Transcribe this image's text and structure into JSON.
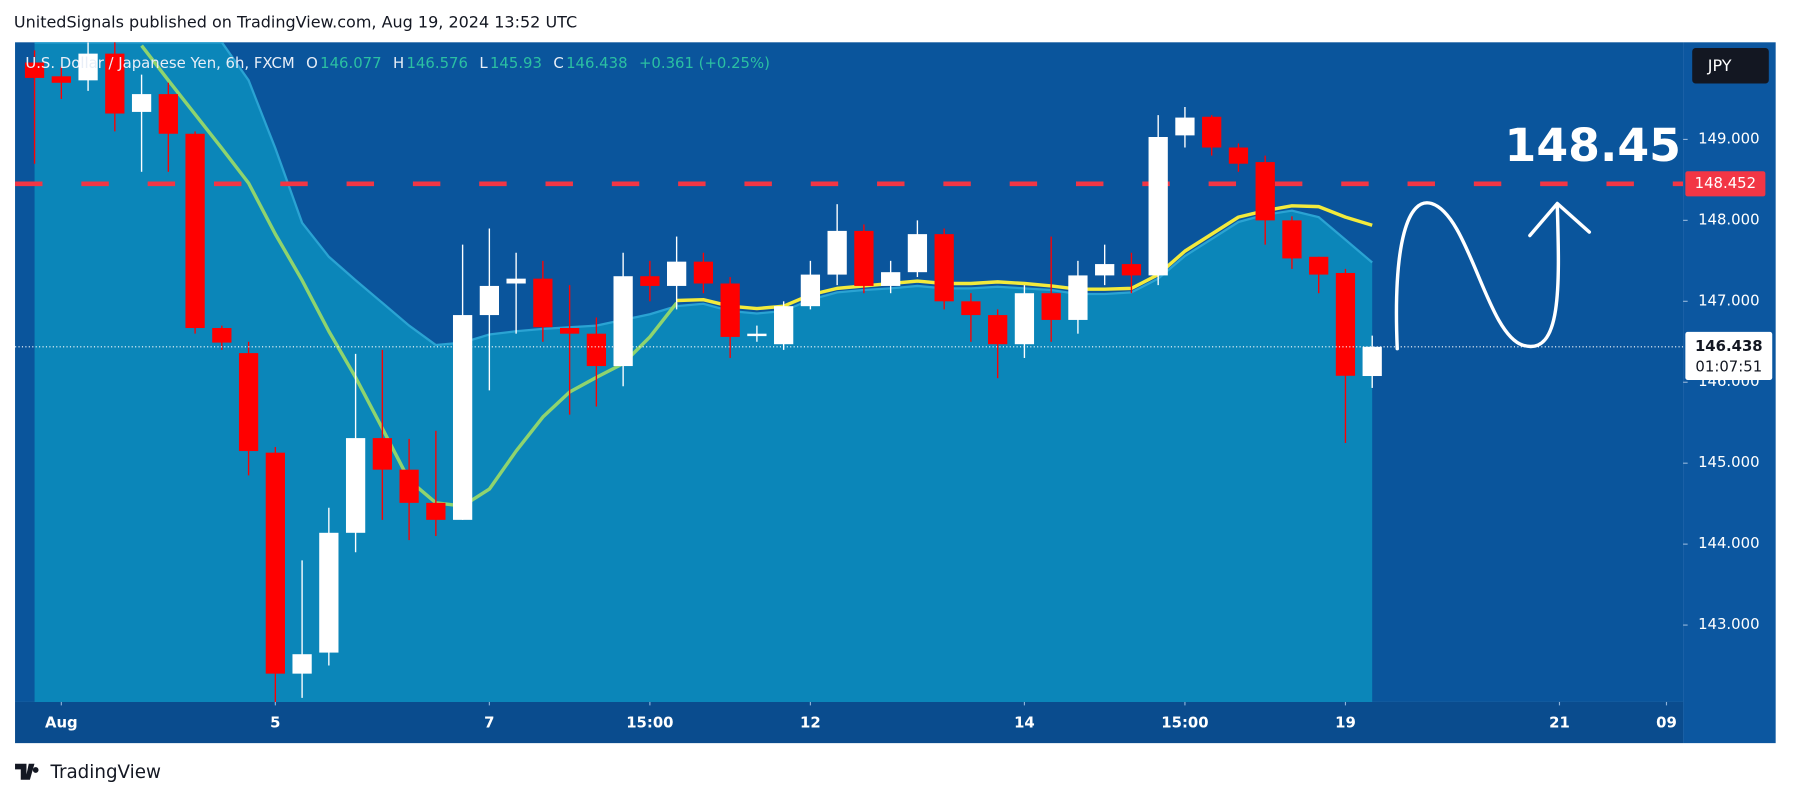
{
  "header": "UnitedSignals published on TradingView.com, Aug 19, 2024 13:52 UTC",
  "footer": "TradingView",
  "currency": "JPY",
  "chart_data": {
    "type": "candlestick",
    "title": "U.S. Dollar / Japanese Yen, 6h, FXCM",
    "ohlc_labels": [
      "O",
      "H",
      "L",
      "C"
    ],
    "change": "+0.361 (+0.25%)",
    "countdown": "01:07:51",
    "up_color": "#ffffff",
    "down_color": "#ff0000",
    "open": [
      149.95,
      149.78,
      149.73,
      150.06,
      149.34,
      149.56,
      149.07,
      146.67,
      146.36,
      145.13,
      142.4,
      142.66,
      144.14,
      145.31,
      144.92,
      144.51,
      144.3,
      146.83,
      147.22,
      147.28,
      146.67,
      146.6,
      146.2,
      147.31,
      147.19,
      147.49,
      147.22,
      146.57,
      146.47,
      146.94,
      147.33,
      147.87,
      147.19,
      147.36,
      147.83,
      147.0,
      146.83,
      146.47,
      147.1,
      146.77,
      147.32,
      147.46,
      147.32,
      149.05,
      149.28,
      148.9,
      148.72,
      148.0,
      147.55,
      147.35,
      146.077
    ],
    "high": [
      150.1,
      149.9,
      150.2,
      150.2,
      149.8,
      149.7,
      149.1,
      146.7,
      146.5,
      145.2,
      143.8,
      144.45,
      146.35,
      146.4,
      145.3,
      145.4,
      147.7,
      147.9,
      147.6,
      147.5,
      147.2,
      146.8,
      147.6,
      147.5,
      147.8,
      147.6,
      147.3,
      146.7,
      147.0,
      147.5,
      148.2,
      147.95,
      147.5,
      148.0,
      147.9,
      147.1,
      146.9,
      147.2,
      147.8,
      147.5,
      147.7,
      147.6,
      149.3,
      149.4,
      149.3,
      148.95,
      148.8,
      148.05,
      147.55,
      147.4,
      146.576
    ],
    "low": [
      148.7,
      149.5,
      149.6,
      149.1,
      148.6,
      148.6,
      146.6,
      146.4,
      144.85,
      142.05,
      142.1,
      142.5,
      143.9,
      144.3,
      144.05,
      144.1,
      144.3,
      145.9,
      146.6,
      146.5,
      145.6,
      145.7,
      145.95,
      147.0,
      146.9,
      147.1,
      146.3,
      146.5,
      146.4,
      146.9,
      147.2,
      147.1,
      147.1,
      147.3,
      146.9,
      146.5,
      146.05,
      146.3,
      146.5,
      146.6,
      147.2,
      147.1,
      147.2,
      148.9,
      148.8,
      148.6,
      147.7,
      147.4,
      147.1,
      145.25,
      145.93
    ],
    "close": [
      149.76,
      149.7,
      150.06,
      149.32,
      149.56,
      149.07,
      146.67,
      146.49,
      145.15,
      142.4,
      142.64,
      144.14,
      145.31,
      144.92,
      144.51,
      144.3,
      146.83,
      147.19,
      147.28,
      146.68,
      146.6,
      146.2,
      147.31,
      147.19,
      147.49,
      147.22,
      146.56,
      146.6,
      146.94,
      147.33,
      147.87,
      147.19,
      147.36,
      147.83,
      147.0,
      146.83,
      146.47,
      147.1,
      146.77,
      147.32,
      147.46,
      147.32,
      149.03,
      149.27,
      148.9,
      148.7,
      148.0,
      147.53,
      147.33,
      146.08,
      146.438
    ],
    "series": [
      {
        "type": "area",
        "color": "#0b86b9",
        "line_color": "#2aa3d3",
        "values": [
          150.2,
          150.2,
          150.2,
          150.2,
          150.2,
          150.2,
          150.2,
          150.2,
          149.73,
          148.89,
          147.97,
          147.55,
          147.26,
          146.98,
          146.7,
          146.46,
          146.49,
          146.59,
          146.63,
          146.66,
          146.68,
          146.7,
          146.77,
          146.84,
          146.94,
          146.97,
          146.88,
          146.85,
          146.88,
          147.02,
          147.11,
          147.14,
          147.16,
          147.19,
          147.16,
          147.16,
          147.18,
          147.16,
          147.14,
          147.09,
          147.09,
          147.11,
          147.28,
          147.56,
          147.77,
          147.98,
          148.07,
          148.12,
          148.04,
          147.76,
          147.48
        ]
      },
      {
        "type": "line",
        "color": "#8fd46e",
        "values": [
          null,
          null,
          null,
          null,
          150.16,
          149.73,
          149.31,
          148.89,
          148.46,
          147.83,
          147.26,
          146.63,
          146.06,
          145.43,
          144.79,
          144.51,
          144.47,
          144.68,
          145.15,
          145.57,
          145.88,
          146.06,
          146.23,
          146.56,
          146.98,
          null,
          null,
          null,
          null,
          null,
          null,
          null,
          null,
          null,
          null,
          null,
          null,
          null,
          null,
          null,
          null,
          null,
          null,
          null,
          null,
          null,
          null,
          null,
          null,
          null,
          null
        ]
      },
      {
        "type": "line",
        "color": "#f3ea3c",
        "values": [
          null,
          null,
          null,
          null,
          null,
          null,
          null,
          null,
          null,
          null,
          null,
          null,
          null,
          null,
          null,
          null,
          null,
          null,
          null,
          null,
          null,
          null,
          null,
          null,
          147.01,
          147.02,
          146.94,
          146.91,
          146.94,
          147.08,
          147.16,
          147.19,
          147.22,
          147.25,
          147.22,
          147.22,
          147.24,
          147.22,
          147.19,
          147.15,
          147.15,
          147.16,
          147.33,
          147.62,
          147.83,
          148.04,
          148.12,
          148.18,
          148.17,
          148.04,
          147.94
        ]
      }
    ],
    "hline": {
      "value": 148.452,
      "label": "148.452",
      "color": "#f23645"
    },
    "annotation": "148.45",
    "xlim": [
      -0.73,
      61.62
    ],
    "xticks": [
      {
        "value": 1,
        "label": "Aug"
      },
      {
        "value": 9,
        "label": "5"
      },
      {
        "value": 17,
        "label": "7"
      },
      {
        "value": 23,
        "label": "15:00"
      },
      {
        "value": 29,
        "label": "12"
      },
      {
        "value": 37,
        "label": "14"
      },
      {
        "value": 43,
        "label": "15:00"
      },
      {
        "value": 49,
        "label": "19"
      },
      {
        "value": 57,
        "label": "21"
      },
      {
        "value": 61,
        "label": "09"
      }
    ],
    "ylim": [
      142.05,
      150.2
    ],
    "yticks": [
      {
        "value": 143,
        "label": "143.000"
      },
      {
        "value": 144,
        "label": "144.000"
      },
      {
        "value": 145,
        "label": "145.000"
      },
      {
        "value": 146,
        "label": "146.000"
      },
      {
        "value": 147,
        "label": "147.000"
      },
      {
        "value": 148,
        "label": "148.000"
      },
      {
        "value": 149,
        "label": "149.000"
      }
    ],
    "grid": false
  }
}
